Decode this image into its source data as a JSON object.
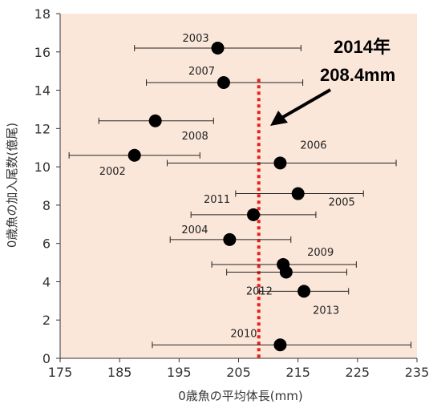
{
  "chart_data": {
    "type": "scatter",
    "title": "",
    "xlabel": "0歳魚の平均体長(mm)",
    "ylabel": "0歳魚の加入尾数(億尾)",
    "xlim": [
      175,
      235
    ],
    "ylim": [
      0,
      18
    ],
    "x_ticks": [
      "175",
      "185",
      "195",
      "205",
      "215",
      "225",
      "235"
    ],
    "y_ticks": [
      "0",
      "2",
      "4",
      "6",
      "8",
      "10",
      "12",
      "14",
      "16",
      "18"
    ],
    "grid": false,
    "points": [
      {
        "label": "2003",
        "x": 201.5,
        "y": 16.2,
        "x_err": [
          187.5,
          215.5
        ]
      },
      {
        "label": "2007",
        "x": 202.5,
        "y": 14.4,
        "x_err": [
          189.5,
          215.8
        ]
      },
      {
        "label": "2008",
        "x": 191.0,
        "y": 12.4,
        "x_err": [
          181.5,
          200.8
        ]
      },
      {
        "label": "2002",
        "x": 187.5,
        "y": 10.6,
        "x_err": [
          176.5,
          198.5
        ]
      },
      {
        "label": "2006",
        "x": 212.0,
        "y": 10.2,
        "x_err": [
          193.0,
          231.5
        ]
      },
      {
        "label": "2005",
        "x": 215.0,
        "y": 8.6,
        "x_err": [
          204.5,
          226.0
        ]
      },
      {
        "label": "2011",
        "x": 207.5,
        "y": 7.5,
        "x_err": [
          197.0,
          218.0
        ]
      },
      {
        "label": "2004",
        "x": 203.5,
        "y": 6.2,
        "x_err": [
          193.5,
          213.8
        ]
      },
      {
        "label": "2009",
        "x": 212.5,
        "y": 4.9,
        "x_err": [
          200.5,
          224.8
        ]
      },
      {
        "label": "2012",
        "x": 213.0,
        "y": 4.5,
        "x_err": [
          203.0,
          223.2
        ]
      },
      {
        "label": "2013",
        "x": 216.0,
        "y": 3.5,
        "x_err": [
          208.5,
          223.5
        ]
      },
      {
        "label": "2010",
        "x": 212.0,
        "y": 0.7,
        "x_err": [
          190.5,
          234.0
        ]
      }
    ],
    "reference_line": {
      "x": 208.4,
      "style": "dotted",
      "color": "#e8201a"
    },
    "annotation": {
      "line1": "2014年",
      "line2": "208.4mm"
    }
  },
  "colors": {
    "plot_background": "#fbe7da",
    "marker": "#000000",
    "error_bar": "#222222",
    "reference_line": "#e8201a"
  }
}
